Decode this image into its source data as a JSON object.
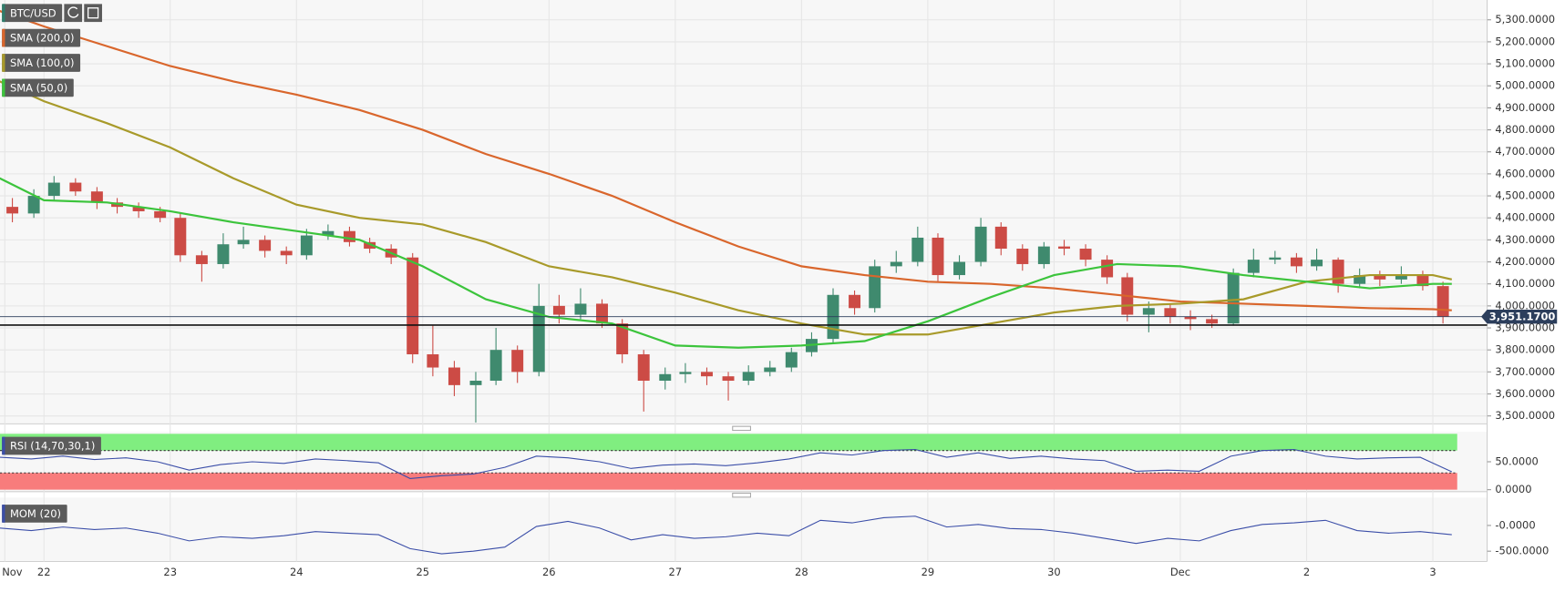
{
  "chart_data": [
    {
      "type": "candlestick",
      "title": "BTC/USD",
      "x": [
        21.75,
        21.92,
        22.08,
        22.25,
        22.42,
        22.58,
        22.75,
        22.92,
        23.08,
        23.25,
        23.42,
        23.58,
        23.75,
        23.92,
        24.08,
        24.25,
        24.42,
        24.58,
        24.75,
        24.92,
        25.08,
        25.25,
        25.42,
        25.58,
        25.75,
        25.92,
        26.08,
        26.25,
        26.42,
        26.58,
        26.75,
        26.92,
        27.08,
        27.25,
        27.42,
        27.58,
        27.75,
        27.92,
        28.08,
        28.25,
        28.42,
        28.58,
        28.75,
        28.92,
        29.08,
        29.25,
        29.42,
        29.58,
        29.75,
        29.92,
        30.08,
        30.25,
        30.42,
        30.58,
        30.75,
        30.92,
        31.08,
        31.25,
        31.42,
        31.58,
        31.75,
        31.92,
        32.08,
        32.25,
        32.42,
        32.58,
        32.75,
        32.92,
        33.08
      ],
      "open": [
        4450,
        4420,
        4500,
        4560,
        4520,
        4470,
        4450,
        4430,
        4400,
        4230,
        4190,
        4280,
        4300,
        4250,
        4230,
        4320,
        4340,
        4290,
        4260,
        4220,
        3780,
        3720,
        3640,
        3660,
        3800,
        3700,
        4000,
        3960,
        4010,
        3920,
        3780,
        3660,
        3690,
        3700,
        3680,
        3660,
        3700,
        3720,
        3790,
        3850,
        4050,
        3990,
        4180,
        4200,
        4310,
        4140,
        4200,
        4360,
        4260,
        4190,
        4270,
        4260,
        4210,
        4130,
        3960,
        3990,
        3950,
        3940,
        3920,
        4150,
        4210,
        4220,
        4180,
        4210,
        4100,
        4140,
        4120,
        4140,
        4090
      ],
      "high": [
        4490,
        4530,
        4590,
        4580,
        4540,
        4490,
        4470,
        4450,
        4420,
        4250,
        4330,
        4360,
        4320,
        4270,
        4350,
        4370,
        4360,
        4310,
        4280,
        4240,
        3910,
        3750,
        3700,
        3900,
        3820,
        4100,
        4050,
        4080,
        4030,
        3940,
        3800,
        3720,
        3740,
        3720,
        3700,
        3730,
        3750,
        3810,
        3880,
        4080,
        4070,
        4210,
        4250,
        4360,
        4330,
        4230,
        4400,
        4380,
        4280,
        4290,
        4300,
        4280,
        4230,
        4150,
        4020,
        4010,
        3980,
        3960,
        4170,
        4260,
        4250,
        4240,
        4260,
        4220,
        4170,
        4160,
        4180,
        4160,
        4110
      ],
      "low": [
        4380,
        4400,
        4480,
        4500,
        4440,
        4420,
        4400,
        4380,
        4200,
        4110,
        4170,
        4260,
        4220,
        4190,
        4210,
        4300,
        4270,
        4240,
        4190,
        3740,
        3680,
        3590,
        3470,
        3640,
        3650,
        3680,
        3920,
        3940,
        3900,
        3740,
        3520,
        3620,
        3650,
        3640,
        3570,
        3640,
        3680,
        3700,
        3770,
        3830,
        3960,
        3970,
        4150,
        4180,
        4110,
        4120,
        4180,
        4230,
        4160,
        4170,
        4230,
        4180,
        4100,
        3930,
        3880,
        3920,
        3890,
        3900,
        3910,
        4130,
        4190,
        4150,
        4160,
        4060,
        4080,
        4090,
        4100,
        4070,
        3920
      ],
      "close": [
        4420,
        4500,
        4560,
        4520,
        4470,
        4450,
        4430,
        4400,
        4230,
        4190,
        4280,
        4300,
        4250,
        4230,
        4320,
        4340,
        4290,
        4260,
        4220,
        3780,
        3720,
        3640,
        3660,
        3800,
        3700,
        4000,
        3960,
        4010,
        3920,
        3780,
        3660,
        3690,
        3700,
        3680,
        3660,
        3700,
        3720,
        3790,
        3850,
        4050,
        3990,
        4180,
        4200,
        4310,
        4140,
        4200,
        4360,
        4260,
        4190,
        4270,
        4260,
        4210,
        4130,
        3960,
        3990,
        3950,
        3940,
        3920,
        4150,
        4210,
        4220,
        4180,
        4210,
        4100,
        4140,
        4120,
        4140,
        4090,
        3951.17
      ],
      "up_color": "#3f8a6e",
      "down_color": "#cc4b45",
      "lines": [
        {
          "name": "SMA (200,0)",
          "color": "#d9662c",
          "x": [
            21.65,
            22,
            22.5,
            23,
            23.5,
            24,
            24.5,
            25,
            25.5,
            26,
            26.5,
            27,
            27.5,
            28,
            28.5,
            29,
            29.5,
            30,
            30.5,
            31,
            31.5,
            32,
            32.5,
            33,
            33.15
          ],
          "values": [
            5340,
            5270,
            5180,
            5090,
            5020,
            4960,
            4890,
            4800,
            4690,
            4600,
            4500,
            4380,
            4270,
            4180,
            4140,
            4110,
            4100,
            4080,
            4050,
            4020,
            4010,
            4000,
            3990,
            3985,
            3980
          ]
        },
        {
          "name": "SMA (100,0)",
          "color": "#a89a2a",
          "x": [
            21.65,
            22,
            22.5,
            23,
            23.5,
            24,
            24.5,
            25,
            25.5,
            26,
            26.5,
            27,
            27.5,
            28,
            28.5,
            29,
            29.5,
            30,
            30.5,
            31,
            31.5,
            32,
            32.5,
            33,
            33.15
          ],
          "values": [
            5020,
            4930,
            4830,
            4720,
            4580,
            4460,
            4400,
            4370,
            4290,
            4180,
            4130,
            4060,
            3980,
            3920,
            3870,
            3870,
            3920,
            3970,
            4000,
            4010,
            4030,
            4110,
            4140,
            4140,
            4120
          ]
        },
        {
          "name": "SMA (50,0)",
          "color": "#3cc43c",
          "x": [
            21.65,
            22,
            22.5,
            23,
            23.5,
            24,
            24.5,
            25,
            25.5,
            26,
            26.5,
            27,
            27.5,
            28,
            28.5,
            29,
            29.5,
            30,
            30.5,
            31,
            31.5,
            32,
            32.5,
            33,
            33.15
          ],
          "values": [
            4580,
            4480,
            4470,
            4430,
            4380,
            4340,
            4300,
            4180,
            4030,
            3950,
            3920,
            3820,
            3810,
            3820,
            3840,
            3930,
            4040,
            4140,
            4190,
            4180,
            4140,
            4110,
            4080,
            4100,
            4100
          ]
        }
      ],
      "last_price": {
        "value": 3951.17,
        "label": "3,951.1700"
      },
      "support_line": 3913,
      "xlim": [
        21.652,
        33.43
      ],
      "xticks": [
        {
          "value": 21.69,
          "label": "Nov"
        },
        22,
        23,
        24,
        25,
        26,
        27,
        28,
        29,
        30,
        {
          "value": 31,
          "label": "Dec"
        },
        {
          "value": 32,
          "label": "2"
        },
        {
          "value": 33,
          "label": "3"
        }
      ],
      "ylim": [
        3464,
        5390
      ],
      "yticks": [
        {
          "value": 3500,
          "label": "3,500.0000"
        },
        {
          "value": 3600,
          "label": "3,600.0000"
        },
        {
          "value": 3700,
          "label": "3,700.0000"
        },
        {
          "value": 3800,
          "label": "3,800.0000"
        },
        {
          "value": 3900,
          "label": "3,900.0000"
        },
        {
          "value": 4000,
          "label": "4,000.0000"
        },
        {
          "value": 4100,
          "label": "4,100.0000"
        },
        {
          "value": 4200,
          "label": "4,200.0000"
        },
        {
          "value": 4300,
          "label": "4,300.0000"
        },
        {
          "value": 4400,
          "label": "4,400.0000"
        },
        {
          "value": 4500,
          "label": "4,500.0000"
        },
        {
          "value": 4600,
          "label": "4,600.0000"
        },
        {
          "value": 4700,
          "label": "4,700.0000"
        },
        {
          "value": 4800,
          "label": "4,800.0000"
        },
        {
          "value": 4900,
          "label": "4,900.0000"
        },
        {
          "value": 5000,
          "label": "5,000.0000"
        },
        {
          "value": 5100,
          "label": "5,100.0000"
        },
        {
          "value": 5200,
          "label": "5,200.0000"
        },
        {
          "value": 5300,
          "label": "5,300.0000"
        }
      ],
      "grid": true
    },
    {
      "type": "line",
      "series": [
        {
          "name": "RSI (14,70,30,1)",
          "color": "#3b4ea8",
          "x": [
            21.65,
            21.9,
            22.15,
            22.4,
            22.65,
            22.9,
            23.15,
            23.4,
            23.65,
            23.9,
            24.15,
            24.4,
            24.65,
            24.9,
            25.15,
            25.4,
            25.65,
            25.9,
            26.15,
            26.4,
            26.65,
            26.9,
            27.15,
            27.4,
            27.65,
            27.9,
            28.15,
            28.4,
            28.65,
            28.9,
            29.15,
            29.4,
            29.65,
            29.9,
            30.15,
            30.4,
            30.65,
            30.9,
            31.15,
            31.4,
            31.65,
            31.9,
            32.15,
            32.4,
            32.65,
            32.9,
            33.15
          ],
          "values": [
            58,
            55,
            60,
            54,
            57,
            50,
            35,
            45,
            50,
            47,
            55,
            52,
            48,
            20,
            25,
            28,
            40,
            60,
            57,
            50,
            38,
            44,
            46,
            43,
            48,
            55,
            66,
            62,
            70,
            72,
            58,
            66,
            56,
            60,
            55,
            52,
            33,
            35,
            33,
            60,
            70,
            72,
            60,
            55,
            57,
            58,
            32
          ]
        }
      ],
      "levels": [
        30,
        70
      ],
      "band_colors": [
        "#f87c7c",
        "#80ee80"
      ],
      "ylim": [
        0,
        100
      ],
      "yticks": [
        {
          "value": 0,
          "label": "0.0000"
        },
        {
          "value": 50,
          "label": "50.0000"
        }
      ]
    },
    {
      "type": "line",
      "series": [
        {
          "name": "MOM (20)",
          "color": "#3b4ea8",
          "x": [
            21.65,
            21.9,
            22.15,
            22.4,
            22.65,
            22.9,
            23.15,
            23.4,
            23.65,
            23.9,
            24.15,
            24.4,
            24.65,
            24.9,
            25.15,
            25.4,
            25.65,
            25.9,
            26.15,
            26.4,
            26.65,
            26.9,
            27.15,
            27.4,
            27.65,
            27.9,
            28.15,
            28.4,
            28.65,
            28.9,
            29.15,
            29.4,
            29.65,
            29.9,
            30.15,
            30.4,
            30.65,
            30.9,
            31.15,
            31.4,
            31.65,
            31.9,
            32.15,
            32.4,
            32.65,
            32.9,
            33.15
          ],
          "values": [
            -50,
            -100,
            -30,
            -80,
            -50,
            -150,
            -300,
            -220,
            -250,
            -200,
            -120,
            -150,
            -180,
            -450,
            -550,
            -500,
            -420,
            -20,
            80,
            -50,
            -280,
            -180,
            -250,
            -220,
            -150,
            -200,
            100,
            50,
            150,
            180,
            -30,
            20,
            -60,
            -80,
            -150,
            -250,
            -350,
            -250,
            -300,
            -100,
            20,
            50,
            100,
            -100,
            -150,
            -120,
            -180
          ]
        }
      ],
      "ylim": [
        -700,
        540
      ],
      "yticks": [
        {
          "value": -500,
          "label": "-500.0000"
        },
        {
          "value": 0,
          "label": "-0.0000"
        }
      ]
    }
  ]
}
